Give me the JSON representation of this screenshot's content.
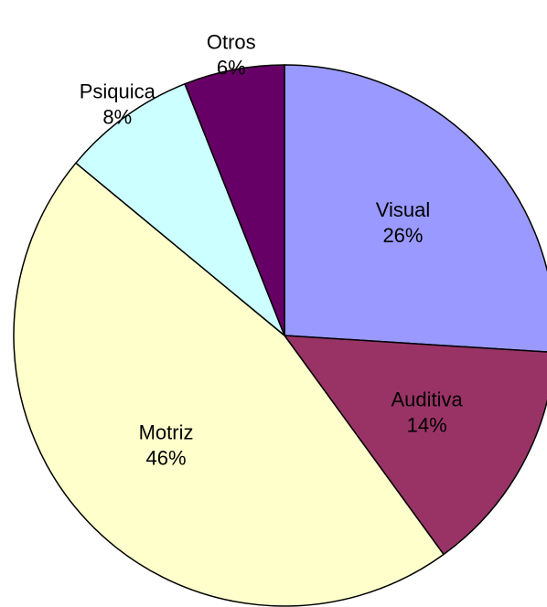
{
  "chart_data": {
    "type": "pie",
    "categories": [
      "Visual",
      "Auditiva",
      "Motriz",
      "Psiquica",
      "Otros"
    ],
    "values": [
      26,
      14,
      46,
      8,
      6
    ],
    "value_labels": [
      "26%",
      "14%",
      "46%",
      "8%",
      "6%"
    ],
    "colors": [
      "#9999ff",
      "#993366",
      "#ffffcc",
      "#ccffff",
      "#660066"
    ]
  }
}
